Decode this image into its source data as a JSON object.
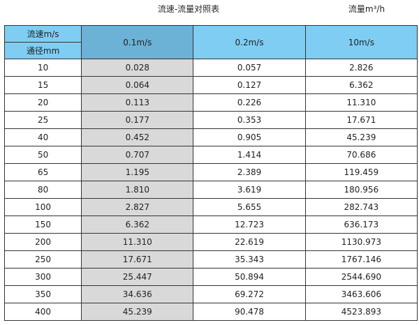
{
  "title": "流速-流量对照表",
  "unit_label": "流量m³/h",
  "header": {
    "velocity_label": "流速m/s",
    "diameter_label": "通径mm",
    "columns": [
      "0.1m/s",
      "0.2m/s",
      "10m/s"
    ]
  },
  "rows": [
    [
      "10",
      "0.028",
      "0.057",
      "2.826"
    ],
    [
      "15",
      "0.064",
      "0.127",
      "6.362"
    ],
    [
      "20",
      "0.113",
      "0.226",
      "11.310"
    ],
    [
      "25",
      "0.177",
      "0.353",
      "17.671"
    ],
    [
      "40",
      "0.452",
      "0.905",
      "45.239"
    ],
    [
      "50",
      "0.707",
      "1.414",
      "70.686"
    ],
    [
      "65",
      "1.195",
      "2.389",
      "119.459"
    ],
    [
      "80",
      "1.810",
      "3.619",
      "180.956"
    ],
    [
      "100",
      "2.827",
      "5.655",
      "282.743"
    ],
    [
      "150",
      "6.362",
      "12.723",
      "636.173"
    ],
    [
      "200",
      "11.310",
      "22.619",
      "1130.973"
    ],
    [
      "250",
      "17.671",
      "35.343",
      "1767.146"
    ],
    [
      "300",
      "25.447",
      "50.894",
      "2544.690"
    ],
    [
      "350",
      "34.636",
      "69.272",
      "3463.606"
    ],
    [
      "400",
      "45.239",
      "90.478",
      "4523.893"
    ]
  ],
  "colors": {
    "header": "#7fcdf3",
    "header_highlight": "#6cb1d6",
    "highlight_column": "#d9d9d9"
  }
}
